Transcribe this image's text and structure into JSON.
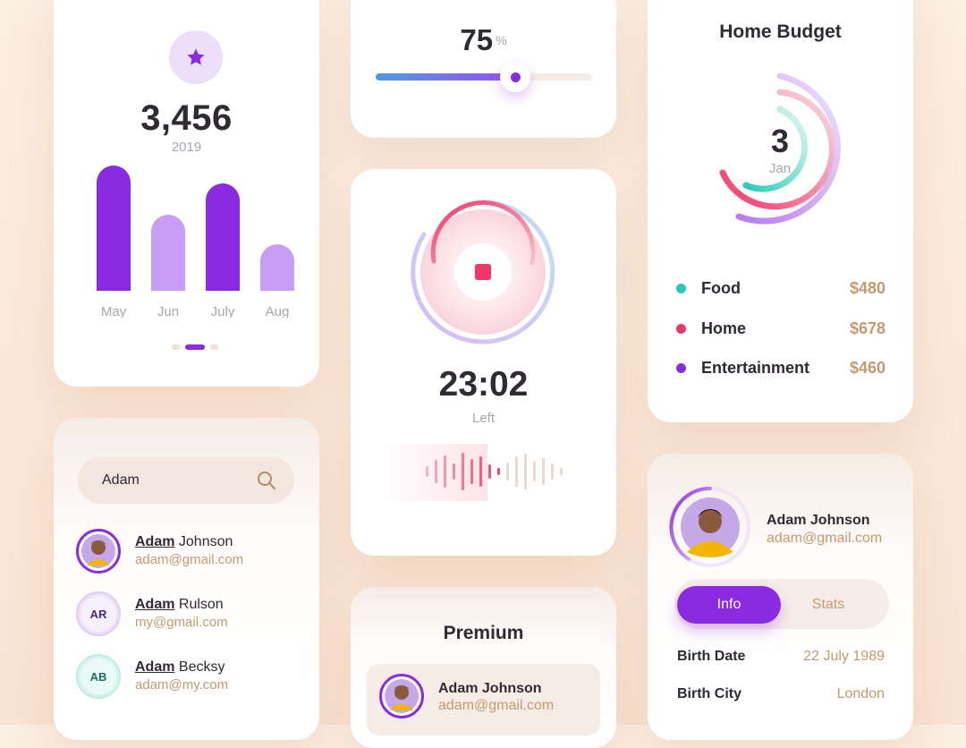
{
  "colors": {
    "purple": "#8a2be2",
    "light_purple": "#c79df5",
    "gold": "#c59a6f",
    "teal": "#26cbb8",
    "pink": "#f2366a",
    "dark": "#2f2a33",
    "muted": "#a9a4ad"
  },
  "stats_card": {
    "icon": "star-icon",
    "total": "3,456",
    "year": "2019",
    "pagination": {
      "count": 3,
      "active": 1
    }
  },
  "chart_data": {
    "type": "bar",
    "categories": [
      "May",
      "Jun",
      "July",
      "Aug"
    ],
    "values": [
      140,
      85,
      120,
      52
    ],
    "ylim": [
      0,
      140
    ],
    "colors": [
      "#8a2be2",
      "#c79df5",
      "#8a2be2",
      "#c79df5"
    ],
    "grid": false,
    "title": "",
    "xlabel": "",
    "ylabel": ""
  },
  "slider": {
    "value": "75",
    "unit": "%",
    "fraction": 0.75
  },
  "timer": {
    "time": "23:02",
    "label": "Left",
    "icon": "stop-icon",
    "progress": 0.55
  },
  "budget": {
    "title": "Home Budget",
    "center_value": "3",
    "center_label": "Jan",
    "items": [
      {
        "name": "Food",
        "value": "$480",
        "color": "#26cbb8"
      },
      {
        "name": "Home",
        "value": "$678",
        "color": "#f2366a"
      },
      {
        "name": "Entertainment",
        "value": "$460",
        "color": "#8a2be2"
      }
    ]
  },
  "search": {
    "query": "Adam",
    "icon": "search-icon",
    "results": [
      {
        "highlight": "Adam",
        "rest": " Johnson",
        "email": "adam@gmail.com",
        "avatar": "photo"
      },
      {
        "highlight": "Adam",
        "rest": " Rulson",
        "email": "my@gmail.com",
        "avatar": "initials",
        "initials": "AR"
      },
      {
        "highlight": "Adam",
        "rest": " Becksy",
        "email": "adam@my.com",
        "avatar": "initials",
        "initials": "AB"
      }
    ]
  },
  "premium": {
    "title": "Premium",
    "name": "Adam Johnson",
    "email": "adam@gmail.com"
  },
  "profile": {
    "name": "Adam Johnson",
    "email": "adam@gmail.com",
    "tabs": [
      "Info",
      "Stats"
    ],
    "active_tab": "Info",
    "fields": [
      {
        "label": "Birth Date",
        "value": "22 July 1989"
      },
      {
        "label": "Birth City",
        "value": "London"
      }
    ]
  }
}
